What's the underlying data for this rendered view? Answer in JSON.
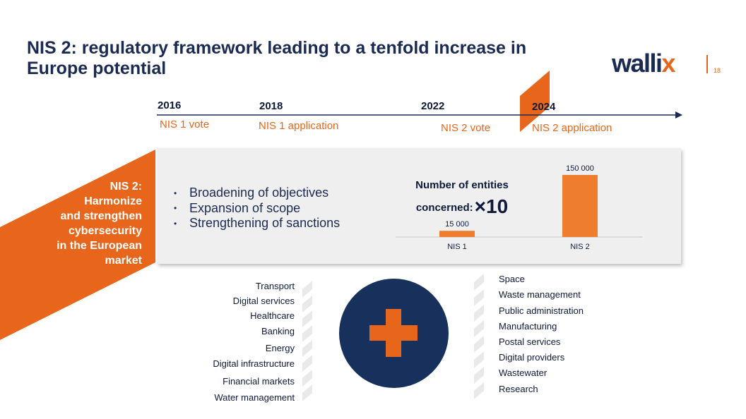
{
  "header": {
    "title": "NIS 2: regulatory framework leading to a tenfold increase in Europe potential",
    "logo_main": "walli",
    "logo_accent": "x",
    "page_number": "18"
  },
  "timeline": [
    {
      "year": "2016",
      "event": "NIS 1 vote"
    },
    {
      "year": "2018",
      "event": "NIS 1 application"
    },
    {
      "year": "2022",
      "event": "NIS 2 vote"
    },
    {
      "year": "2024",
      "event": "NIS 2 application"
    }
  ],
  "nis2_panel": {
    "label_lines": [
      "NIS 2:",
      "Harmonize",
      "and strengthen",
      "cybersecurity",
      "in the European",
      "market"
    ],
    "bullets": [
      "Broadening of objectives",
      "Expansion of scope",
      "Strengthening of sanctions"
    ]
  },
  "chart_data": {
    "type": "bar",
    "title_line1": "Number of entities",
    "title_line2": "concerned:",
    "multiplier": "×10",
    "categories": [
      "NIS 1",
      "NIS 2"
    ],
    "values": [
      15000,
      150000
    ],
    "value_labels": [
      "15 000",
      "150 000"
    ],
    "ylim": [
      0,
      150000
    ],
    "bar_color": "#ee7d2e"
  },
  "sectors": {
    "left": [
      "Transport",
      "Digital services",
      "Healthcare",
      "Banking",
      "Energy",
      "Digital infrastructure",
      "Financial markets",
      "Water management"
    ],
    "right": [
      "Space",
      "Waste management",
      "Public administration",
      "Manufacturing",
      "Postal services",
      "Digital providers",
      "Wastewater",
      "Research"
    ]
  },
  "colors": {
    "accent": "#e8661b",
    "navy": "#1b2a52",
    "circle": "#17305c"
  },
  "icons": {
    "center": "plus-icon"
  }
}
